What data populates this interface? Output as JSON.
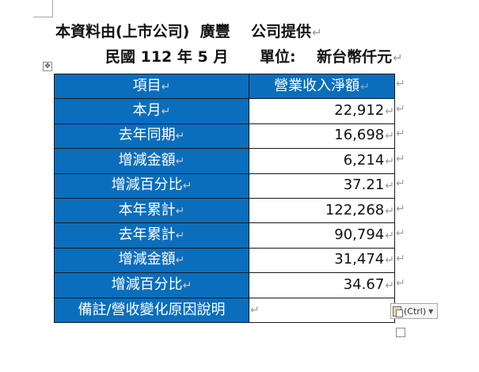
{
  "header": {
    "line1": "本資料由(上市公司)  廣豐    公司提供",
    "line2": "民國 112 年 5 月      單位:    新台幣仟元"
  },
  "marks": {
    "paragraph": "↵",
    "cell_end": "↵"
  },
  "table": {
    "header": {
      "label": "項目",
      "value": "營業收入淨額"
    },
    "rows": [
      {
        "label": "本月",
        "value": "22,912"
      },
      {
        "label": "去年同期",
        "value": "16,698"
      },
      {
        "label": "增減金額",
        "value": "6,214"
      },
      {
        "label": "增減百分比",
        "value": "37.21"
      },
      {
        "label": "本年累計",
        "value": "122,268"
      },
      {
        "label": "去年累計",
        "value": "90,794"
      },
      {
        "label": "增減金額",
        "value": "31,474"
      },
      {
        "label": "增減百分比",
        "value": "34.67"
      },
      {
        "label": "備註/營收變化原因說明",
        "value": ""
      }
    ]
  },
  "paste_options": {
    "label": "(Ctrl)"
  },
  "colors": {
    "header_fill": "#0a6ebd",
    "header_text": "#ffffff",
    "border": "#1a1a1a"
  }
}
